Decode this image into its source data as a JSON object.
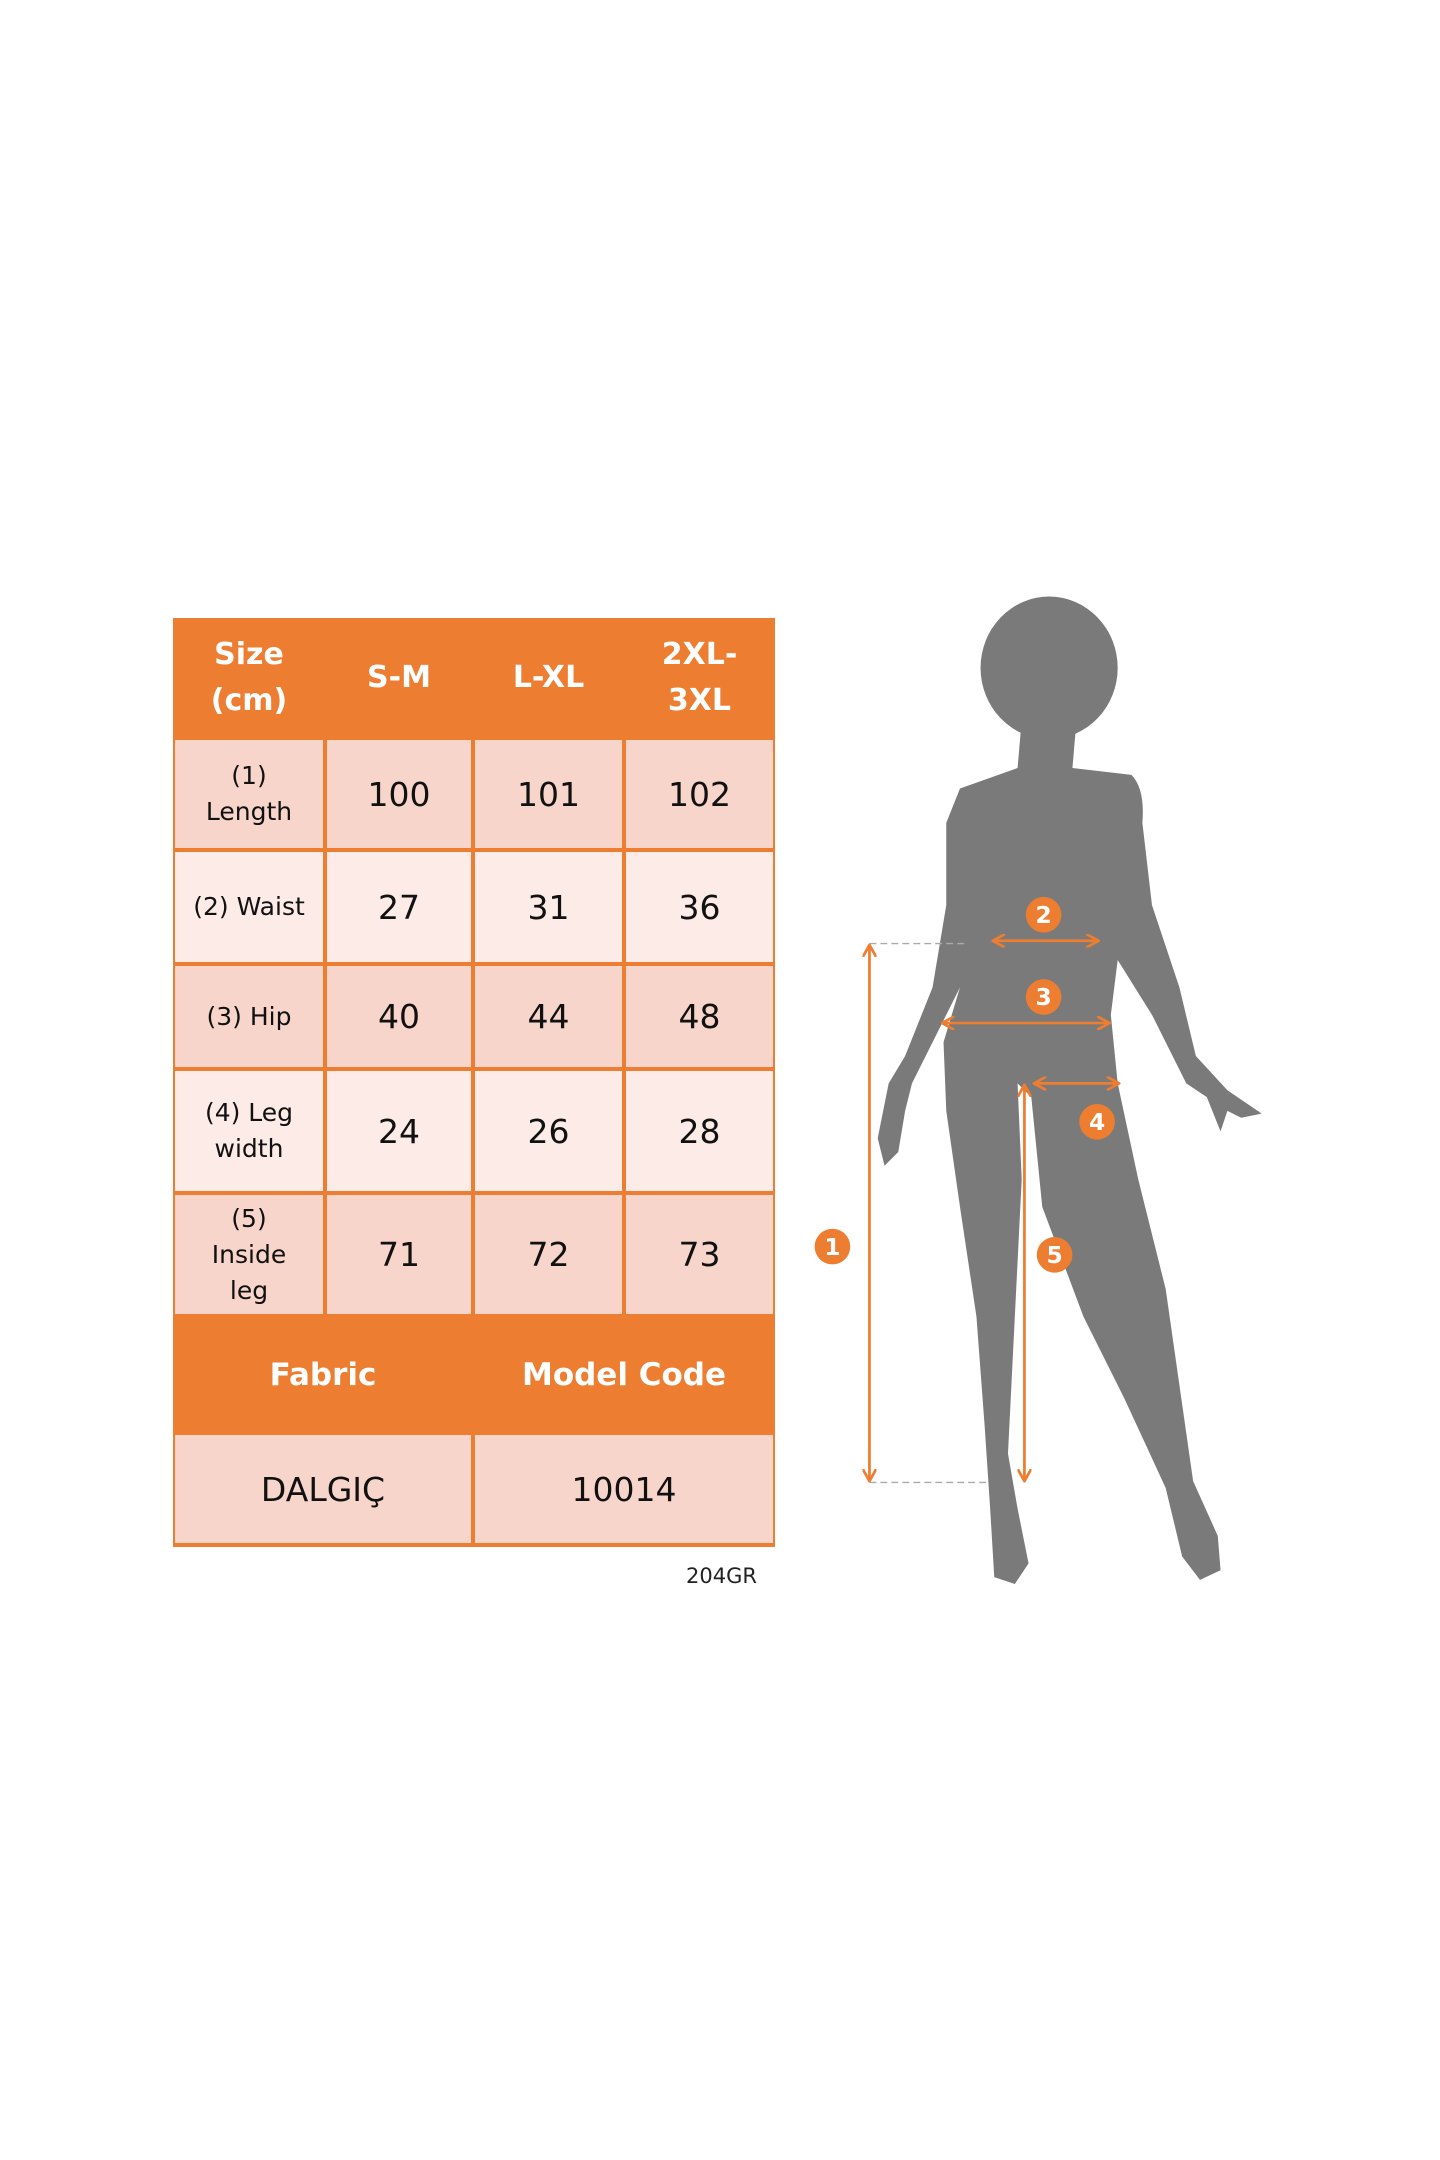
{
  "colors": {
    "accent": "#ED7D31",
    "cell_dark": "#F8D5CB",
    "cell_light": "#FCEBE6",
    "silhouette": "#7A7A7A"
  },
  "table": {
    "headers": [
      "Size\n(cm)",
      "S-M",
      "L-XL",
      "2XL-\n3XL"
    ],
    "rows": [
      {
        "label": "(1)\nLength",
        "values": [
          "100",
          "101",
          "102"
        ]
      },
      {
        "label": "(2) Waist",
        "values": [
          "27",
          "31",
          "36"
        ]
      },
      {
        "label": "(3) Hip",
        "values": [
          "40",
          "44",
          "48"
        ]
      },
      {
        "label": "(4) Leg\nwidth",
        "values": [
          "24",
          "26",
          "28"
        ]
      },
      {
        "label": "(5)\nInside\nleg",
        "values": [
          "71",
          "72",
          "73"
        ]
      }
    ],
    "footer_headers": [
      "Fabric",
      "Model Code"
    ],
    "footer_values": [
      "DALGIÇ",
      "10014"
    ]
  },
  "code_note": "204GR",
  "figure": {
    "markers": [
      "1",
      "2",
      "3",
      "4",
      "5"
    ]
  }
}
